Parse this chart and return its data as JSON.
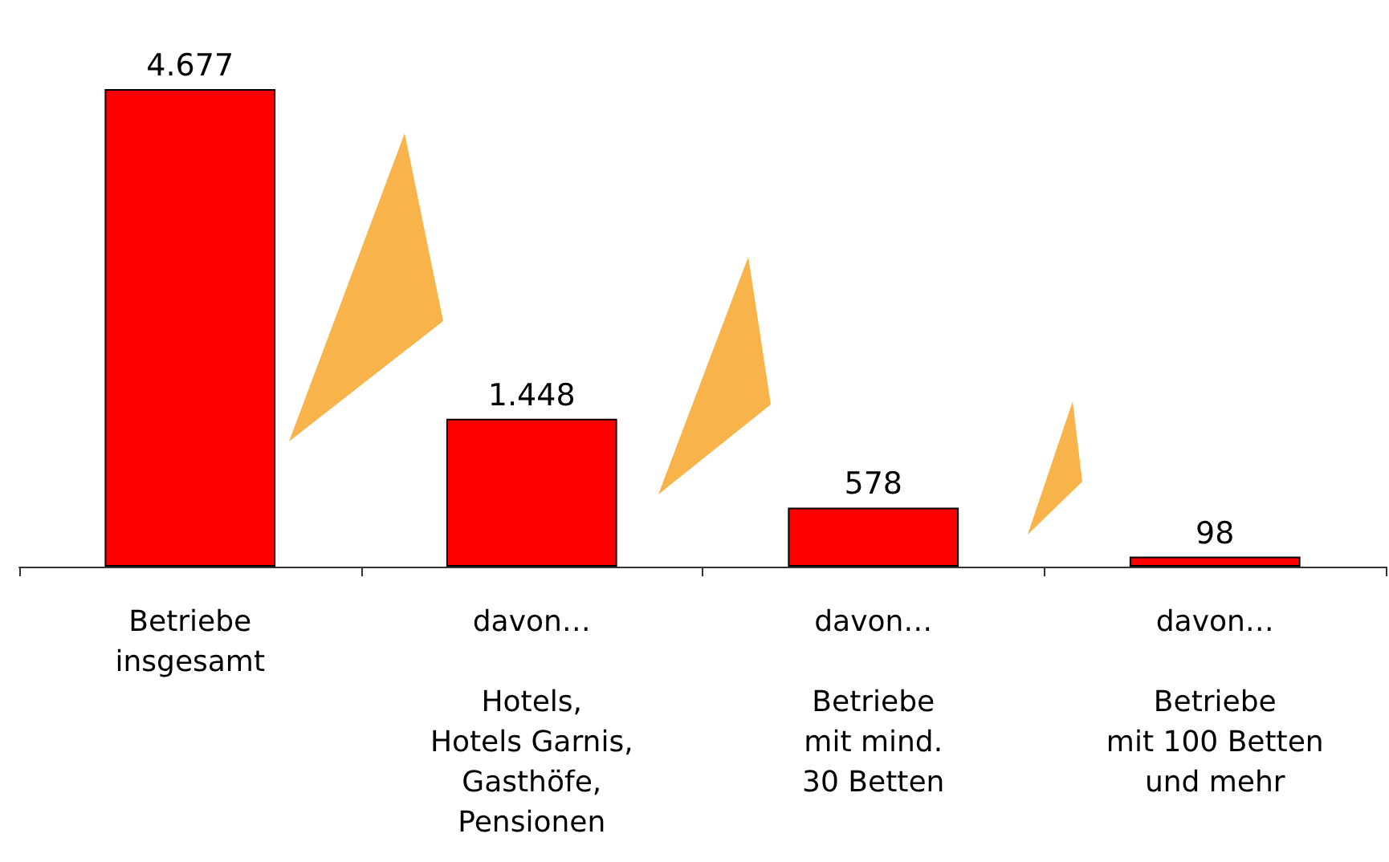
{
  "chart_data": {
    "type": "bar",
    "categories": [
      "Betriebe\ninsgesamt",
      "davon…\n\nHotels,\nHotels Garnis,\nGasthöfe,\nPensionen",
      "davon…\n\nBetriebe\nmit mind.\n30 Betten",
      "davon…\n\nBetriebe\nmit 100 Betten\nund mehr"
    ],
    "values": [
      4677,
      1448,
      578,
      98
    ],
    "value_labels": [
      "4.677",
      "1.448",
      "578",
      "98"
    ],
    "color": "#ff0000",
    "grid": false
  }
}
